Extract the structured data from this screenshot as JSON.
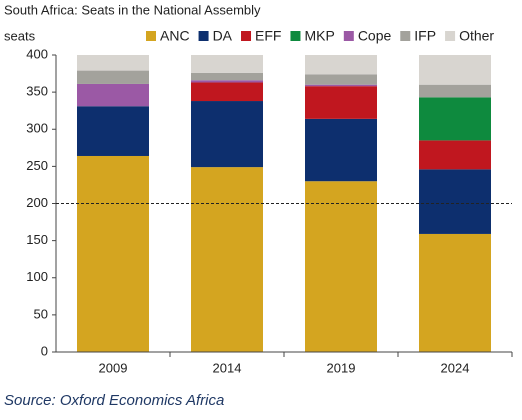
{
  "chart_data": {
    "type": "stacked_bar",
    "title": "South Africa: Seats in the National Assembly",
    "y_label": "seats",
    "source": "Source: Oxford Economics Africa",
    "categories": [
      "2009",
      "2014",
      "2019",
      "2024"
    ],
    "series": [
      {
        "name": "ANC",
        "color": "#d4a520",
        "values": [
          264,
          249,
          230,
          159
        ]
      },
      {
        "name": "DA",
        "color": "#0d2f6e",
        "values": [
          67,
          89,
          84,
          87
        ]
      },
      {
        "name": "EFF",
        "color": "#c0171f",
        "values": [
          null,
          25,
          44,
          39
        ]
      },
      {
        "name": "MKP",
        "color": "#0e8a3e",
        "values": [
          null,
          null,
          null,
          58
        ]
      },
      {
        "name": "Cope",
        "color": "#9b59a5",
        "values": [
          30,
          3,
          2,
          null
        ]
      },
      {
        "name": "IFP",
        "color": "#a3a29c",
        "values": [
          18,
          10,
          14,
          17
        ]
      },
      {
        "name": "Other",
        "color": "#d8d5d0",
        "values": [
          21,
          24,
          26,
          40
        ]
      }
    ],
    "ylim": [
      0,
      400
    ],
    "yticks": [
      0,
      50,
      100,
      150,
      200,
      250,
      300,
      350,
      400
    ],
    "reference_line": 200
  }
}
